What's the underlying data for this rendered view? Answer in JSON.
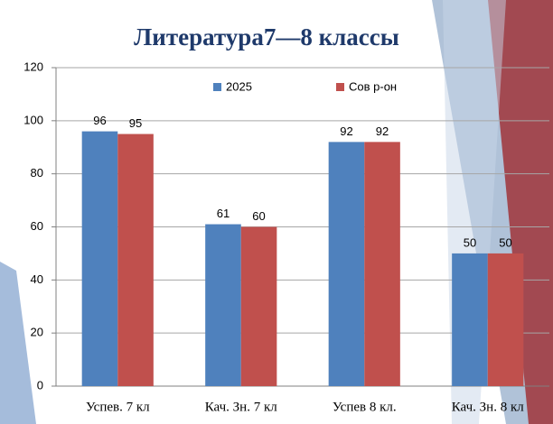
{
  "chart_data": {
    "type": "bar",
    "title": "Литература7—8 классы",
    "categories": [
      "Успев. 7 кл",
      "Кач. Зн. 7 кл",
      "Успев 8 кл.",
      "Кач. Зн. 8 кл"
    ],
    "series": [
      {
        "name": "2025",
        "color": "#4f81bd",
        "values": [
          96,
          61,
          92,
          50
        ]
      },
      {
        "name": "Сов р-он",
        "color": "#c0504d",
        "values": [
          95,
          60,
          92,
          50
        ]
      }
    ],
    "ylim": [
      0,
      120
    ],
    "yticks": [
      0,
      20,
      40,
      60,
      80,
      100,
      120
    ],
    "grid": true,
    "legend": "top"
  }
}
